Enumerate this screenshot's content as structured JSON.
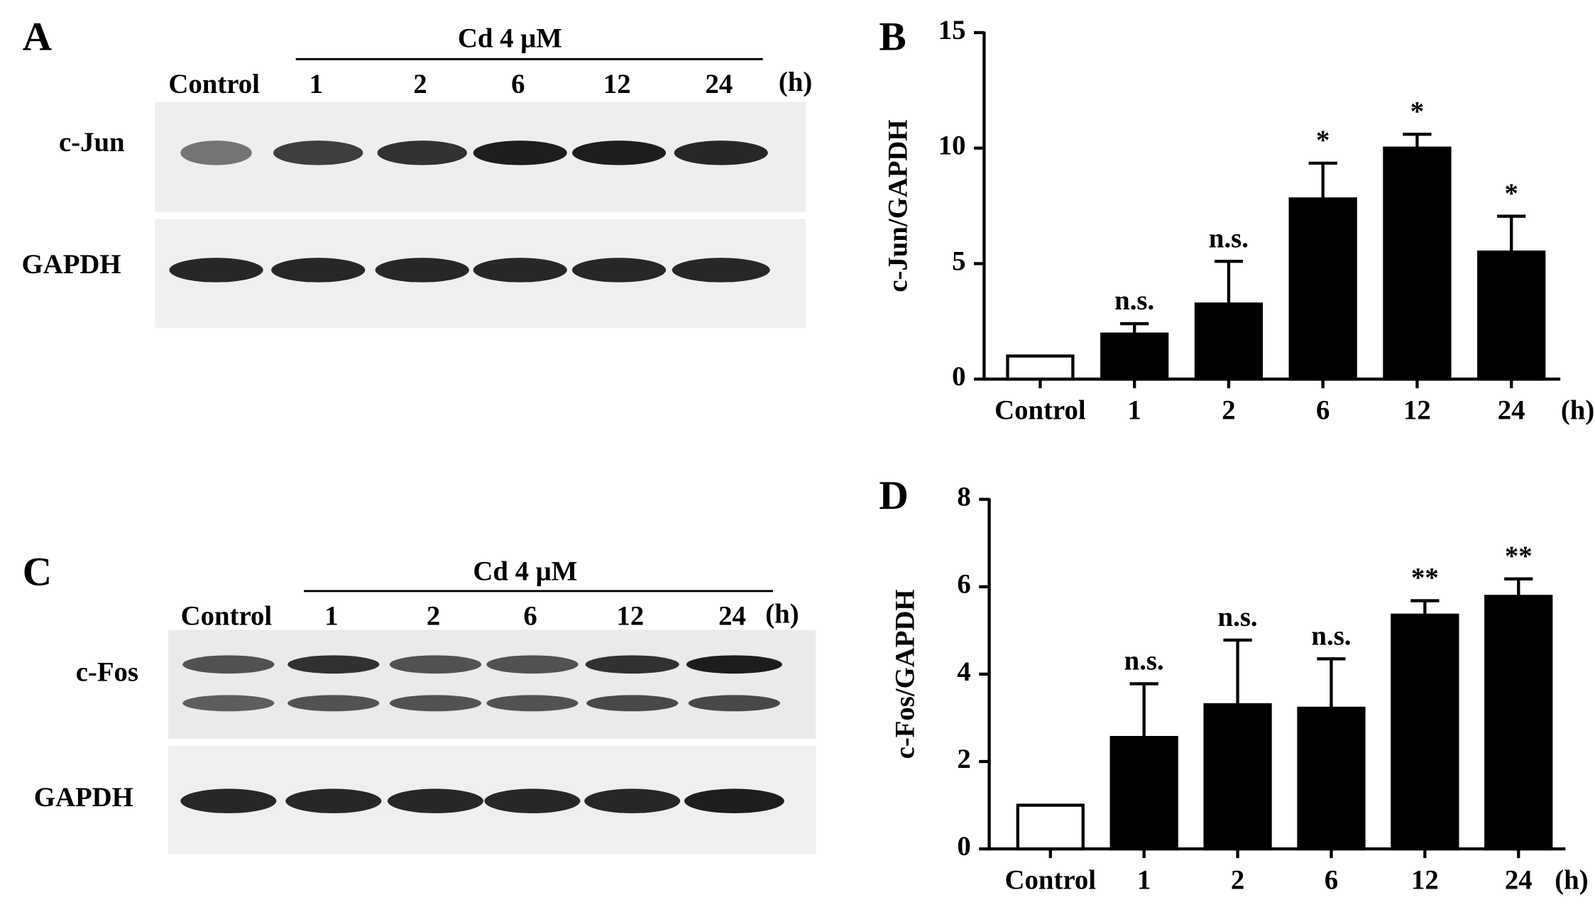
{
  "panels": [
    {
      "letter": "A",
      "treatment": "Cd 4 μM",
      "lanes": [
        "Control",
        "1",
        "2",
        "6",
        "12",
        "24"
      ],
      "unit": "(h)",
      "rows": [
        "c-Jun",
        "GAPDH"
      ]
    },
    {
      "letter": "C",
      "treatment": "Cd 4 μM",
      "lanes": [
        "Control",
        "1",
        "2",
        "6",
        "12",
        "24"
      ],
      "unit": "(h)",
      "rows": [
        "c-Fos",
        "GAPDH"
      ]
    }
  ],
  "chart_data": [
    {
      "type": "bar",
      "letter": "B",
      "ylabel": "c-Jun/GAPDH",
      "x_unit": "(h)",
      "categories": [
        "Control",
        "1",
        "2",
        "6",
        "12",
        "24"
      ],
      "values": [
        1,
        1.95,
        3.25,
        7.8,
        10,
        5.5
      ],
      "errors": [
        0,
        0.45,
        1.85,
        1.55,
        0.6,
        1.55
      ],
      "annotations": [
        null,
        "n.s.",
        "n.s.",
        "*",
        "*",
        "*"
      ],
      "colors": [
        "#ffffff",
        "#000000",
        "#000000",
        "#000000",
        "#000000",
        "#000000"
      ],
      "ylim": [
        0,
        15
      ],
      "yticks": [
        0,
        5,
        10,
        15
      ]
    },
    {
      "type": "bar",
      "letter": "D",
      "ylabel": "c-Fos/GAPDH",
      "x_unit": "(h)",
      "categories": [
        "Control",
        "1",
        "2",
        "6",
        "12",
        "24"
      ],
      "values": [
        1,
        2.55,
        3.3,
        3.22,
        5.35,
        5.78
      ],
      "errors": [
        0,
        1.23,
        1.48,
        1.13,
        0.33,
        0.4
      ],
      "annotations": [
        null,
        "n.s.",
        "n.s.",
        "n.s.",
        "**",
        "**"
      ],
      "colors": [
        "#ffffff",
        "#000000",
        "#000000",
        "#000000",
        "#000000",
        "#000000"
      ],
      "ylim": [
        0,
        8
      ],
      "yticks": [
        0,
        2,
        4,
        6,
        8
      ]
    }
  ]
}
